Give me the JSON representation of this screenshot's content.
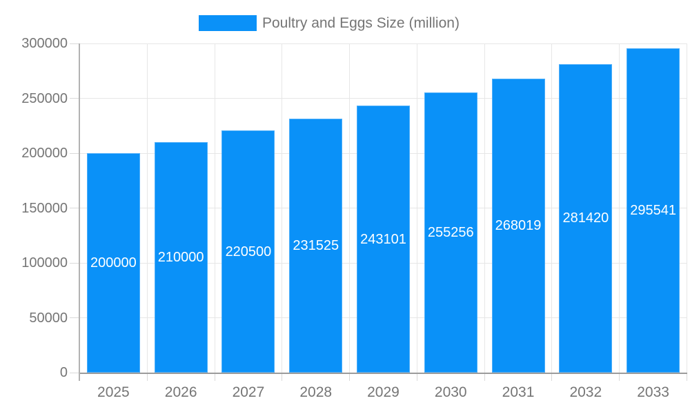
{
  "legend": {
    "label": "Poultry and Eggs Size (million)"
  },
  "chart_data": {
    "type": "bar",
    "title": "Poultry and Eggs Size (million)",
    "series_name": "Poultry and Eggs Size (million)",
    "categories": [
      "2025",
      "2026",
      "2027",
      "2028",
      "2029",
      "2030",
      "2031",
      "2032",
      "2033"
    ],
    "values": [
      200000,
      210000,
      220500,
      231525,
      243101,
      255256,
      268019,
      281420,
      295541
    ],
    "xlabel": "",
    "ylabel": "",
    "ylim": [
      0,
      300000
    ],
    "yticks": [
      0,
      50000,
      100000,
      150000,
      200000,
      250000,
      300000
    ],
    "grid": true,
    "legend_position": "top",
    "bar_color": "#0a91f8",
    "bar_label_color": "#ffffff",
    "axis_color": "#9b9b9b",
    "gridline_color": "#e6e6e6",
    "tick_label_color": "#757575"
  }
}
